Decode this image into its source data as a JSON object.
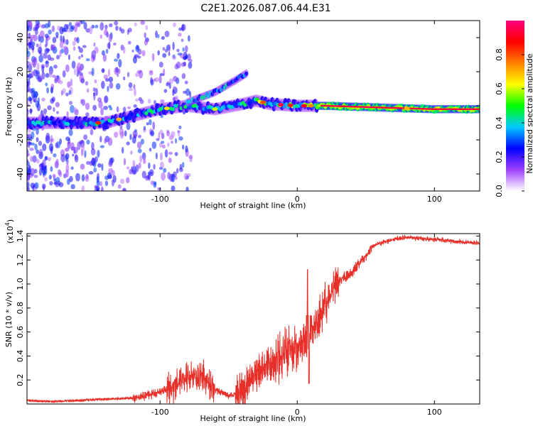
{
  "title": "C2E1.2026.087.06.44.E31",
  "chart_data": [
    {
      "type": "heatmap",
      "xlabel": "Height of straight line (km)",
      "ylabel": "Frequency (Hz)",
      "xlim": [
        -197,
        133
      ],
      "ylim": [
        -50,
        50
      ],
      "xticks": [
        -100,
        0,
        100
      ],
      "yticks": [
        -40,
        -20,
        0,
        20,
        40
      ],
      "colorbar_label": "Normalized spectral amplitude",
      "colorbar_ticks": [
        0.0,
        0.2,
        0.4,
        0.6,
        0.8
      ],
      "colorbar_range": [
        0.0,
        1.0
      ],
      "colorbar_colors": [
        "#ffffff",
        "#a040ff",
        "#0000ff",
        "#00c8ff",
        "#00ff00",
        "#ffff00",
        "#ff8000",
        "#ff0000",
        "#ff0080"
      ],
      "main_track": [
        {
          "x": -195,
          "y": -10
        },
        {
          "x": -150,
          "y": -10
        },
        {
          "x": -140,
          "y": -10
        },
        {
          "x": -120,
          "y": -6
        },
        {
          "x": -100,
          "y": -2
        },
        {
          "x": -80,
          "y": 0
        },
        {
          "x": -60,
          "y": -2
        },
        {
          "x": -40,
          "y": 1
        },
        {
          "x": -30,
          "y": 3
        },
        {
          "x": -20,
          "y": 1
        },
        {
          "x": 0,
          "y": 0
        },
        {
          "x": 20,
          "y": 0
        },
        {
          "x": 60,
          "y": -1
        },
        {
          "x": 100,
          "y": -2
        },
        {
          "x": 133,
          "y": -2
        }
      ],
      "upper_branch": [
        {
          "x": -80,
          "y": 2
        },
        {
          "x": -60,
          "y": 8
        },
        {
          "x": -45,
          "y": 15
        },
        {
          "x": -37,
          "y": 19
        }
      ]
    },
    {
      "type": "line",
      "xlabel": "Height of straight line (km)",
      "ylabel": "SNR (10 * v/v)",
      "y_multiplier": "(x10",
      "y_multiplier_exp": "4",
      "xlim": [
        -197,
        133
      ],
      "ylim": [
        0.0,
        1.42
      ],
      "xticks": [
        -100,
        0,
        100
      ],
      "yticks": [
        0.2,
        0.4,
        0.6,
        0.8,
        1.0,
        1.2,
        1.4
      ],
      "line_color": "#e8302a",
      "series": [
        {
          "name": "SNR",
          "x": [
            -197,
            -180,
            -160,
            -140,
            -120,
            -110,
            -100,
            -90,
            -80,
            -70,
            -60,
            -50,
            -40,
            -35,
            -30,
            -25,
            -20,
            -15,
            -10,
            -5,
            0,
            5,
            10,
            15,
            20,
            25,
            30,
            35,
            40,
            45,
            50,
            55,
            60,
            70,
            80,
            90,
            100,
            110,
            120,
            133
          ],
          "values": [
            0.03,
            0.02,
            0.03,
            0.04,
            0.05,
            0.07,
            0.1,
            0.15,
            0.22,
            0.24,
            0.12,
            0.07,
            0.1,
            0.18,
            0.24,
            0.3,
            0.33,
            0.38,
            0.43,
            0.46,
            0.48,
            0.55,
            0.6,
            0.7,
            0.82,
            0.95,
            1.02,
            1.06,
            1.1,
            1.17,
            1.23,
            1.32,
            1.34,
            1.37,
            1.39,
            1.38,
            1.37,
            1.36,
            1.35,
            1.34
          ]
        }
      ]
    }
  ]
}
